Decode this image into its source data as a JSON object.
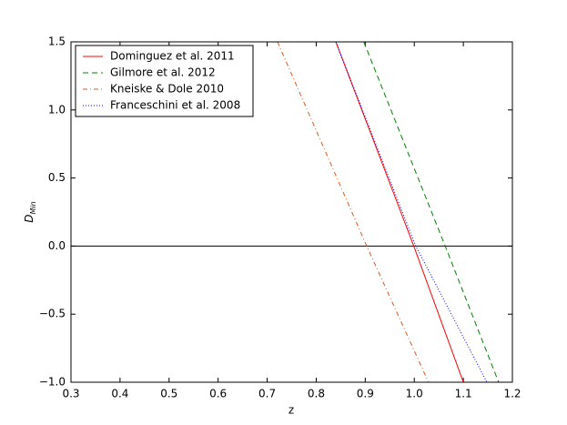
{
  "chart_data": {
    "type": "line",
    "xlabel": "z",
    "ylabel": "D",
    "ylabel_sub": "Min",
    "xlim": [
      0.3,
      1.2
    ],
    "ylim": [
      -1.0,
      1.5
    ],
    "xticks": [
      0.3,
      0.4,
      0.5,
      0.6,
      0.7,
      0.8,
      0.9,
      {
        "value": 1.0,
        "label": "1.0"
      },
      1.1,
      1.2
    ],
    "yticks": [
      {
        "value": -1.0,
        "label": "−1.0"
      },
      {
        "value": -0.5,
        "label": "−0.5"
      },
      {
        "value": 0.0,
        "label": "0.0"
      },
      0.5,
      {
        "value": 1.0,
        "label": "1.0"
      },
      1.5
    ],
    "hline": 0,
    "legend": "upper left",
    "series": [
      {
        "name": "Dominguez et al. 2011",
        "color": "#ff0000",
        "linestyle": "solid",
        "x": [
          0.84,
          0.999,
          1.1
        ],
        "values": [
          1.5,
          0.0,
          -1.0
        ]
      },
      {
        "name": "Gilmore et al. 2012",
        "color": "#008000",
        "linestyle": "dashed",
        "x": [
          0.897,
          1.063,
          1.172
        ],
        "values": [
          1.5,
          0.0,
          -1.0
        ]
      },
      {
        "name": "Kneiske & Dole 2010",
        "color": "#e0561b",
        "linestyle": "dashdot",
        "x": [
          0.721,
          0.903,
          1.029
        ],
        "values": [
          1.5,
          0.0,
          -1.0
        ]
      },
      {
        "name": "Franceschini et al. 2008",
        "color": "#0000ff",
        "linestyle": "dotted",
        "x": [
          0.84,
          1.003,
          1.148
        ],
        "values": [
          1.5,
          0.0,
          -1.0
        ]
      }
    ]
  }
}
